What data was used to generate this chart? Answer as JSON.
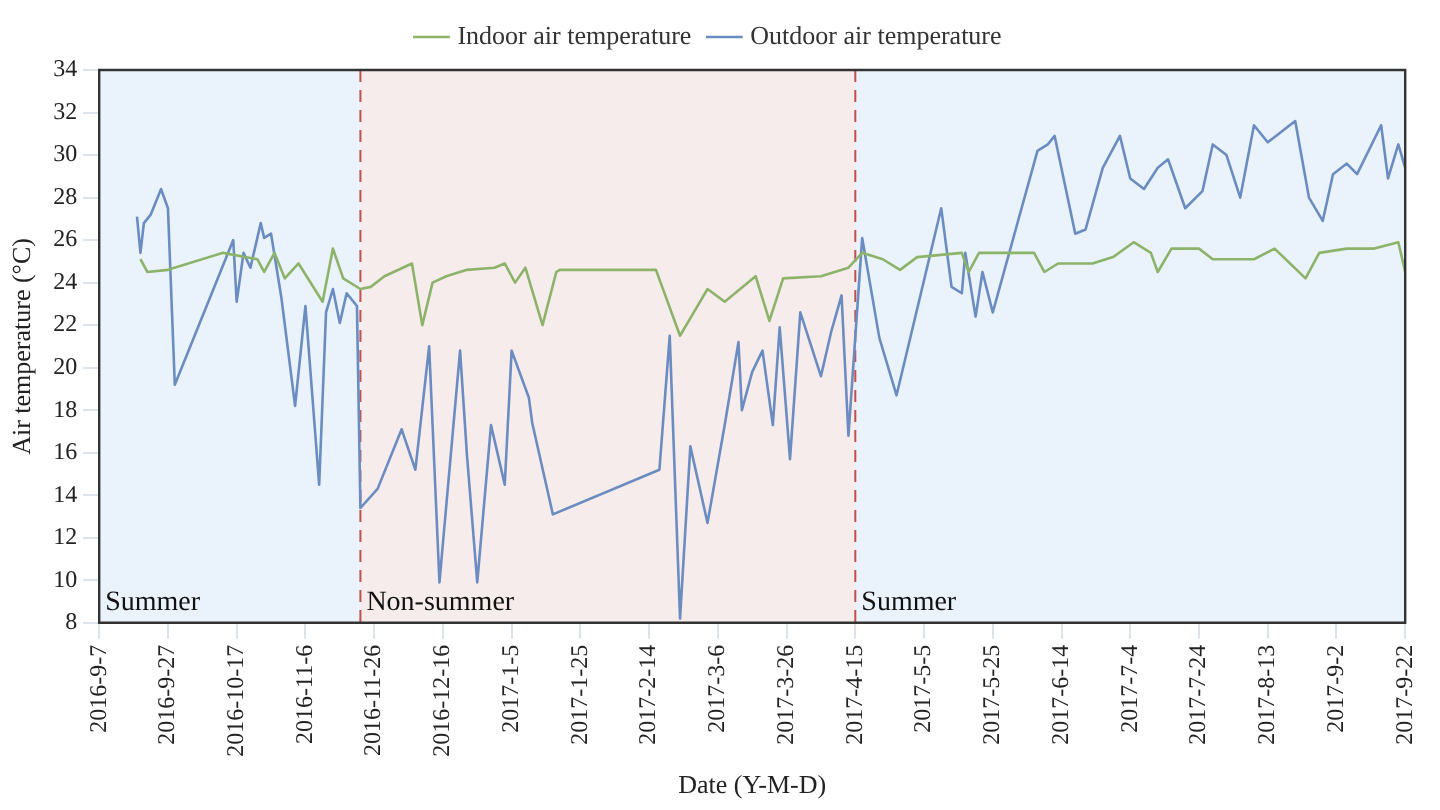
{
  "chart_data": {
    "type": "line",
    "xlabel": "Date (Y-M-D)",
    "ylabel": "Air temperature (°C)",
    "xlim": [
      "2016-09-07",
      "2017-09-22"
    ],
    "xticks": [
      {
        "value": "2016-09-07",
        "label": "2016-9-7"
      },
      {
        "value": "2016-09-27",
        "label": "2016-9-27"
      },
      {
        "value": "2016-10-17",
        "label": "2016-10-17"
      },
      {
        "value": "2016-11-06",
        "label": "2016-11-6"
      },
      {
        "value": "2016-11-26",
        "label": "2016-11-26"
      },
      {
        "value": "2016-12-16",
        "label": "2016-12-16"
      },
      {
        "value": "2017-01-05",
        "label": "2017-1-5"
      },
      {
        "value": "2017-01-25",
        "label": "2017-1-25"
      },
      {
        "value": "2017-02-14",
        "label": "2017-2-14"
      },
      {
        "value": "2017-03-06",
        "label": "2017-3-6"
      },
      {
        "value": "2017-03-26",
        "label": "2017-3-26"
      },
      {
        "value": "2017-04-15",
        "label": "2017-4-15"
      },
      {
        "value": "2017-05-05",
        "label": "2017-5-5"
      },
      {
        "value": "2017-05-25",
        "label": "2017-5-25"
      },
      {
        "value": "2017-06-14",
        "label": "2017-6-14"
      },
      {
        "value": "2017-07-04",
        "label": "2017-7-4"
      },
      {
        "value": "2017-07-24",
        "label": "2017-7-24"
      },
      {
        "value": "2017-08-13",
        "label": "2017-8-13"
      },
      {
        "value": "2017-09-02",
        "label": "2017-9-2"
      },
      {
        "value": "2017-09-22",
        "label": "2017-9-22"
      }
    ],
    "ylim": [
      8,
      34
    ],
    "yticks": [
      8,
      10,
      12,
      14,
      16,
      18,
      20,
      22,
      24,
      26,
      28,
      30,
      32,
      34
    ],
    "grid": true,
    "legend": "top",
    "marker": "none",
    "line_style": "solid",
    "bands": [
      {
        "axis": "x",
        "from": "2016-09-07",
        "to": "2016-11-22",
        "label": "Summer",
        "color": "#eaf3fb"
      },
      {
        "axis": "x",
        "from": "2016-11-22",
        "to": "2017-04-15",
        "label": "Non-summer",
        "color": "#f7ecec"
      },
      {
        "axis": "x",
        "from": "2017-04-15",
        "to": "2017-09-22",
        "label": "Summer",
        "color": "#eaf3fb"
      }
    ],
    "ref_lines": [
      {
        "axis": "x",
        "value": "2016-11-22",
        "color": "#c0504d",
        "line_style": "dashed"
      },
      {
        "axis": "x",
        "value": "2017-04-15",
        "color": "#c0504d",
        "line_style": "dashed"
      }
    ],
    "series": [
      {
        "name": "Indoor air temperature",
        "color": "#8db36a",
        "x": [
          "2016-09-19",
          "2016-09-21",
          "2016-09-27",
          "2016-10-13",
          "2016-10-23",
          "2016-10-25",
          "2016-10-28",
          "2016-10-31",
          "2016-11-04",
          "2016-11-11",
          "2016-11-14",
          "2016-11-17",
          "2016-11-22",
          "2016-11-25",
          "2016-11-29",
          "2016-12-07",
          "2016-12-10",
          "2016-12-13",
          "2016-12-17",
          "2016-12-23",
          "2016-12-31",
          "2017-01-03",
          "2017-01-06",
          "2017-01-09",
          "2017-01-14",
          "2017-01-18",
          "2017-01-19",
          "2017-02-16",
          "2017-02-23",
          "2017-02-27",
          "2017-03-03",
          "2017-03-08",
          "2017-03-17",
          "2017-03-21",
          "2017-03-25",
          "2017-04-05",
          "2017-04-13",
          "2017-04-17",
          "2017-04-23",
          "2017-04-28",
          "2017-05-03",
          "2017-05-16",
          "2017-05-18",
          "2017-05-21",
          "2017-06-06",
          "2017-06-09",
          "2017-06-13",
          "2017-06-23",
          "2017-06-29",
          "2017-07-05",
          "2017-07-10",
          "2017-07-12",
          "2017-07-16",
          "2017-07-24",
          "2017-07-28",
          "2017-08-09",
          "2017-08-15",
          "2017-08-24",
          "2017-08-28",
          "2017-09-05",
          "2017-09-13",
          "2017-09-20",
          "2017-09-22"
        ],
        "values": [
          25.1,
          24.5,
          24.6,
          25.4,
          25.1,
          24.5,
          25.4,
          24.2,
          24.9,
          23.1,
          25.6,
          24.2,
          23.7,
          23.8,
          24.3,
          24.9,
          22.0,
          24.0,
          24.3,
          24.6,
          24.7,
          24.9,
          24.0,
          24.7,
          22.0,
          24.5,
          24.6,
          24.6,
          21.5,
          22.6,
          23.7,
          23.1,
          24.3,
          22.2,
          24.2,
          24.3,
          24.7,
          25.4,
          25.1,
          24.6,
          25.2,
          25.4,
          24.5,
          25.4,
          25.4,
          24.5,
          24.9,
          24.9,
          25.2,
          25.9,
          25.4,
          24.5,
          25.6,
          25.6,
          25.1,
          25.1,
          25.6,
          24.2,
          25.4,
          25.6,
          25.6,
          25.9,
          24.5
        ]
      },
      {
        "name": "Outdoor air temperature",
        "color": "#6b8cc0",
        "x": [
          "2016-09-18",
          "2016-09-19",
          "2016-09-20",
          "2016-09-22",
          "2016-09-25",
          "2016-09-27",
          "2016-09-29",
          "2016-10-16",
          "2016-10-17",
          "2016-10-19",
          "2016-10-21",
          "2016-10-24",
          "2016-10-25",
          "2016-10-27",
          "2016-10-30",
          "2016-11-03",
          "2016-11-06",
          "2016-11-10",
          "2016-11-12",
          "2016-11-14",
          "2016-11-16",
          "2016-11-18",
          "2016-11-21",
          "2016-11-22",
          "2016-11-27",
          "2016-12-04",
          "2016-12-08",
          "2016-12-12",
          "2016-12-15",
          "2016-12-21",
          "2016-12-23",
          "2016-12-26",
          "2016-12-30",
          "2017-01-03",
          "2017-01-05",
          "2017-01-10",
          "2017-01-11",
          "2017-01-17",
          "2017-02-17",
          "2017-02-20",
          "2017-02-23",
          "2017-02-26",
          "2017-03-03",
          "2017-03-08",
          "2017-03-12",
          "2017-03-13",
          "2017-03-16",
          "2017-03-19",
          "2017-03-22",
          "2017-03-24",
          "2017-03-27",
          "2017-03-30",
          "2017-04-05",
          "2017-04-08",
          "2017-04-11",
          "2017-04-13",
          "2017-04-17",
          "2017-04-22",
          "2017-04-27",
          "2017-05-10",
          "2017-05-13",
          "2017-05-16",
          "2017-05-17",
          "2017-05-20",
          "2017-05-22",
          "2017-05-25",
          "2017-06-07",
          "2017-06-10",
          "2017-06-12",
          "2017-06-18",
          "2017-06-21",
          "2017-06-26",
          "2017-07-01",
          "2017-07-04",
          "2017-07-08",
          "2017-07-12",
          "2017-07-15",
          "2017-07-20",
          "2017-07-25",
          "2017-07-28",
          "2017-08-01",
          "2017-08-05",
          "2017-08-09",
          "2017-08-13",
          "2017-08-21",
          "2017-08-25",
          "2017-08-29",
          "2017-09-01",
          "2017-09-05",
          "2017-09-08",
          "2017-09-15",
          "2017-09-17",
          "2017-09-20",
          "2017-09-22"
        ],
        "values": [
          27.1,
          25.4,
          26.8,
          27.2,
          28.4,
          27.5,
          19.2,
          26.0,
          23.1,
          25.4,
          24.7,
          26.8,
          26.1,
          26.3,
          23.3,
          18.2,
          22.9,
          14.5,
          22.6,
          23.7,
          22.1,
          23.5,
          22.9,
          13.4,
          14.3,
          17.1,
          15.2,
          21.0,
          9.9,
          20.8,
          15.9,
          9.9,
          17.3,
          14.5,
          20.8,
          18.6,
          17.4,
          13.1,
          15.2,
          21.5,
          8.2,
          16.3,
          12.7,
          17.3,
          21.2,
          18.0,
          19.8,
          20.8,
          17.3,
          21.9,
          15.7,
          22.6,
          19.6,
          21.7,
          23.4,
          16.8,
          26.1,
          21.4,
          18.7,
          27.5,
          23.8,
          23.5,
          25.4,
          22.4,
          24.5,
          22.6,
          30.2,
          30.5,
          30.9,
          26.3,
          26.5,
          29.4,
          30.9,
          28.9,
          28.4,
          29.4,
          29.8,
          27.5,
          28.3,
          30.5,
          30.0,
          28.0,
          31.4,
          30.6,
          31.6,
          28.0,
          26.9,
          29.1,
          29.6,
          29.1,
          31.4,
          28.9,
          30.5,
          29.4
        ]
      }
    ]
  }
}
